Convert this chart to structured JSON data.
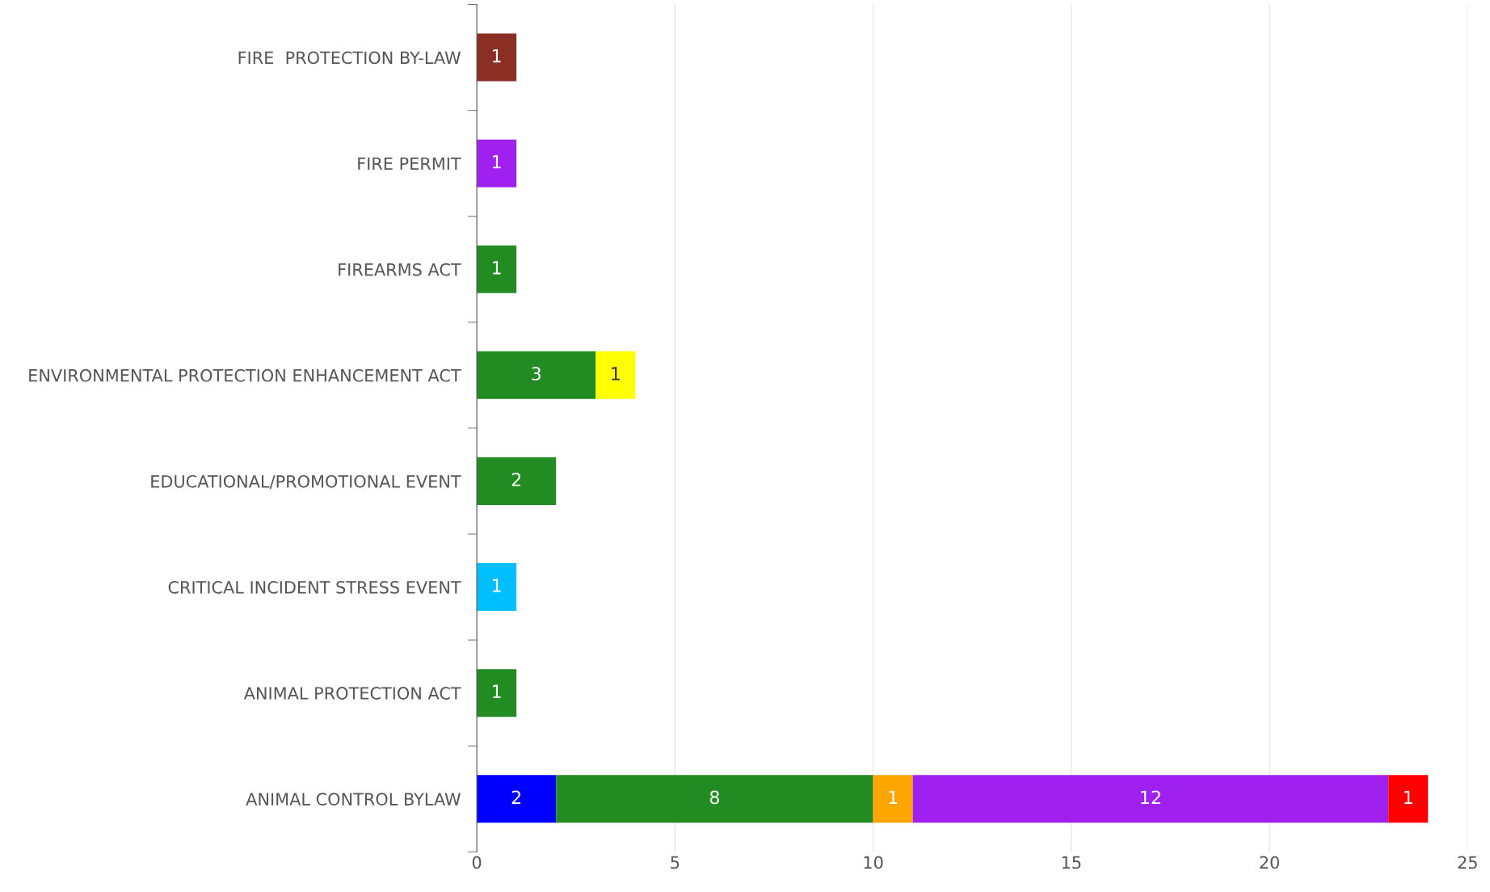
{
  "chart_data": {
    "type": "bar",
    "orientation": "horizontal",
    "stacked": true,
    "data_labels": true,
    "grid": "x",
    "legend": false,
    "categories": [
      "FIRE  PROTECTION BY-LAW",
      "FIRE PERMIT",
      "FIREARMS ACT",
      "ENVIRONMENTAL PROTECTION ENHANCEMENT ACT",
      "EDUCATIONAL/PROMOTIONAL EVENT",
      "CRITICAL INCIDENT STRESS EVENT",
      "ANIMAL PROTECTION ACT",
      "ANIMAL CONTROL BYLAW"
    ],
    "xlim": [
      0,
      25
    ],
    "xticks": [
      0,
      5,
      10,
      15,
      20,
      25
    ],
    "series": [
      {
        "color": "#0000ff",
        "values": [
          null,
          null,
          null,
          null,
          null,
          null,
          null,
          2
        ]
      },
      {
        "color": "#228b22",
        "values": [
          null,
          null,
          1,
          3,
          2,
          null,
          1,
          8
        ]
      },
      {
        "color": "#ffa500",
        "values": [
          null,
          null,
          null,
          null,
          null,
          null,
          null,
          1
        ]
      },
      {
        "color": "#a020f0",
        "values": [
          null,
          1,
          null,
          null,
          null,
          null,
          null,
          12
        ]
      },
      {
        "color": "#ff0000",
        "values": [
          null,
          null,
          null,
          null,
          null,
          null,
          null,
          1
        ]
      },
      {
        "color": "#ffff00",
        "values": [
          null,
          null,
          null,
          1,
          null,
          null,
          null,
          null
        ]
      },
      {
        "color": "#00bfff",
        "values": [
          null,
          null,
          null,
          null,
          null,
          1,
          null,
          null
        ]
      },
      {
        "color": "#8b2e24",
        "values": [
          1,
          null,
          null,
          null,
          null,
          null,
          null,
          null
        ]
      }
    ]
  }
}
